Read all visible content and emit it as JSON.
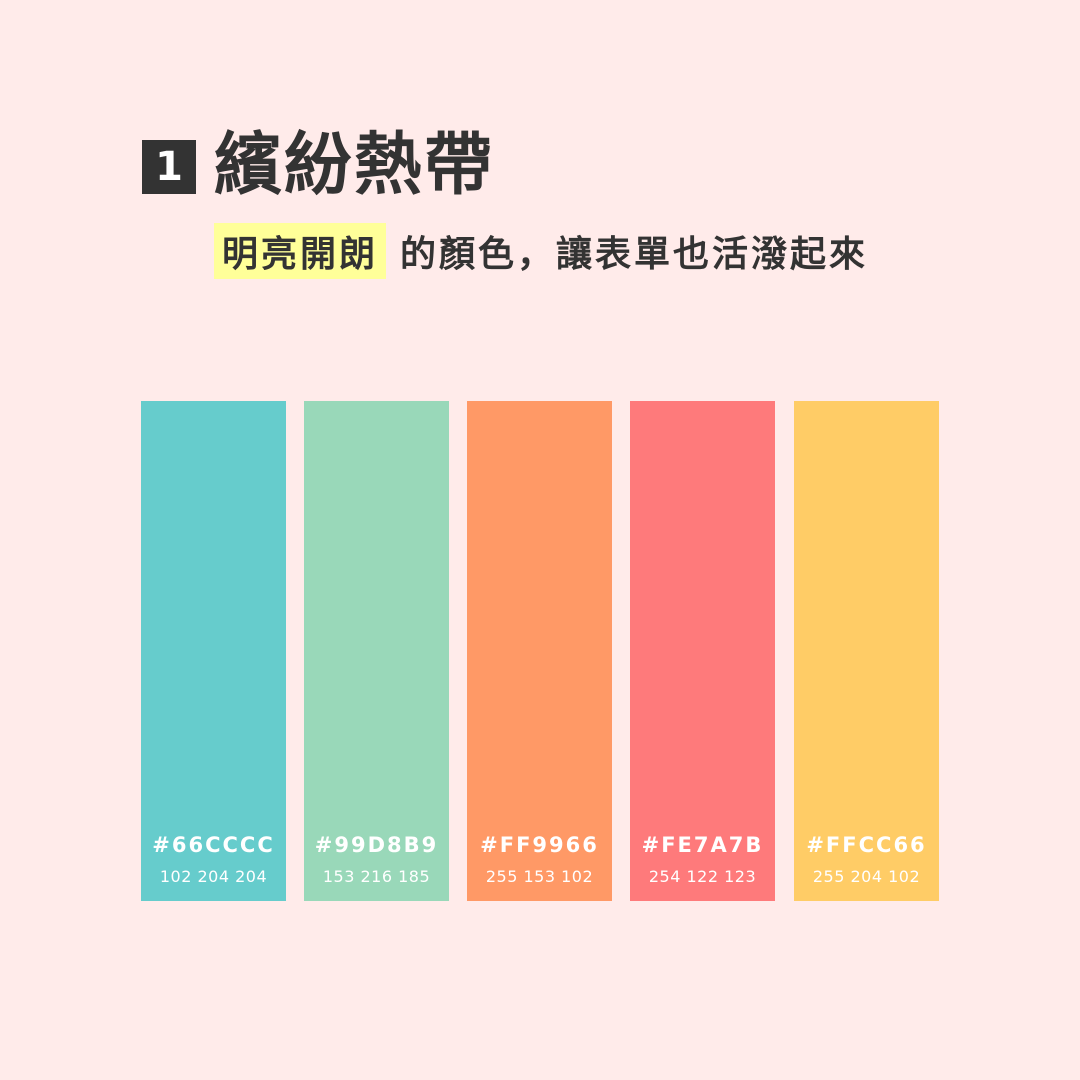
{
  "colors": {
    "background": "#FFEBEA",
    "text": "#333333",
    "badge_bg": "#333333",
    "badge_text": "#FFFFFF",
    "highlight": "#FFFF99",
    "swatch_text": "#FFFFFF"
  },
  "header": {
    "number": "1",
    "title": "繽紛熱帶",
    "subtitle_highlight": "明亮開朗",
    "subtitle_rest": "的顏色，讓表單也活潑起來"
  },
  "swatches": [
    {
      "hex": "#66CCCC",
      "rgb": "102 204 204",
      "color": "#66CCCC"
    },
    {
      "hex": "#99D8B9",
      "rgb": "153 216 185",
      "color": "#99D8B9"
    },
    {
      "hex": "#FF9966",
      "rgb": "255 153 102",
      "color": "#FF9966"
    },
    {
      "hex": "#FE7A7B",
      "rgb": "254 122 123",
      "color": "#FE7A7B"
    },
    {
      "hex": "#FFCC66",
      "rgb": "255 204 102",
      "color": "#FFCC66"
    }
  ]
}
